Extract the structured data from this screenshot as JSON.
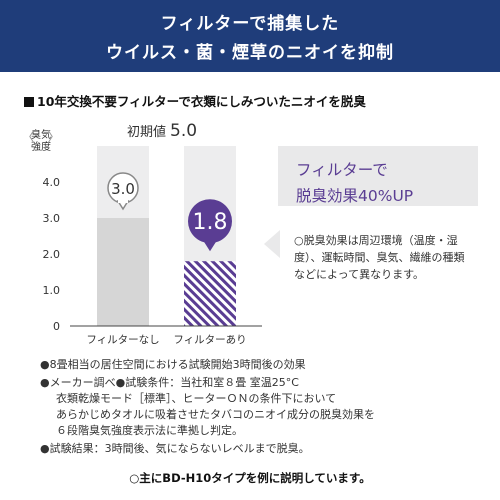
{
  "header": {
    "line1": "フィルターで捕集した",
    "line2": "ウイルス・菌・煙草のニオイを抑制"
  },
  "subheading": "10年交換不要フィルターで衣類にしみついたニオイを脱臭",
  "callout": {
    "line1": "フィルターで",
    "line2": "脱臭効果40%UP",
    "note": "○脱臭効果は周辺環境（温度・湿度）、運転時間、臭気、繊維の種類などによって異なります。"
  },
  "footnotes": [
    "●8畳相当の居住空間における試験開始3時間後の効果",
    "●メーカー調べ●試験条件：当社和室８畳 室温25°C",
    "衣類乾燥モード［標準］、ヒーターＯＮの条件下において",
    "あらかじめタオルに吸着させたタバコのニオイ成分の脱臭効果を",
    "６段階臭気強度表示法に準拠し判定。",
    "●試験結果：3時間後、気にならないレベルまで脱臭。"
  ],
  "bottom_note": "○主にBD-H10タイプを例に説明しています。",
  "colors": {
    "header": "#1f3d7a",
    "accent_purple": "#5a3d93",
    "bar_gray": "#d6d6d6",
    "column_bg": "#ededee"
  },
  "chart_data": {
    "type": "bar",
    "categories": [
      "フィルターなし",
      "フィルターあり"
    ],
    "values": [
      3.0,
      1.8
    ],
    "value_labels": [
      "3.0",
      "1.8"
    ],
    "ylabel_line1": "臭気",
    "ylabel_line2": "強度",
    "yticks": [
      "0",
      "1.0",
      "2.0",
      "3.0",
      "4.0"
    ],
    "ylim": [
      0,
      5.0
    ],
    "reference": {
      "label": "初期値",
      "value_text": "5.0",
      "value": 5.0
    },
    "grid": false
  }
}
